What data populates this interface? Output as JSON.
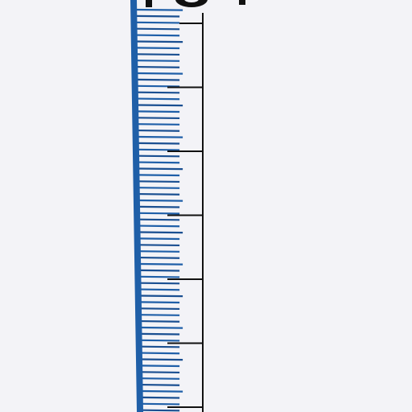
{
  "colors": {
    "background": "#f3f3f7",
    "scale_blue": "#1f5fa8",
    "scale_blue_dark": "#1a4f91",
    "tick_black": "#111111"
  },
  "icons": [
    "vertical-ruler-scale",
    "partial-dark-glyph-top"
  ]
}
